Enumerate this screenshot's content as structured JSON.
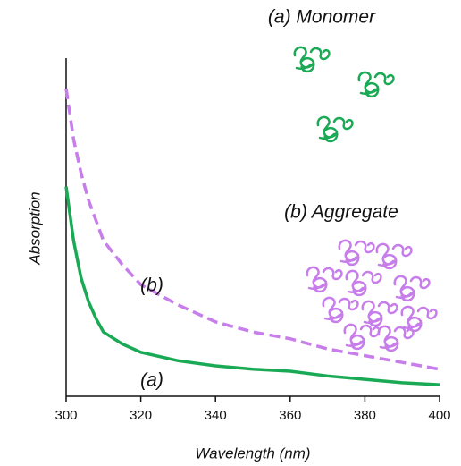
{
  "chart_data": {
    "type": "line",
    "x_label": "Wavelength  (nm)",
    "y_label": "Absorption",
    "annotations": [
      "(a) Monomer",
      "(b) Aggregate"
    ],
    "x": [
      300,
      302,
      304,
      306,
      308,
      310,
      315,
      320,
      330,
      340,
      350,
      360,
      370,
      380,
      390,
      400
    ],
    "series": [
      {
        "name": "(a)",
        "color": "#1aaa55",
        "line_style": "solid",
        "values": [
          0.62,
          0.46,
          0.35,
          0.28,
          0.23,
          0.19,
          0.155,
          0.13,
          0.105,
          0.09,
          0.08,
          0.074,
          0.06,
          0.05,
          0.04,
          0.034
        ]
      },
      {
        "name": "(b)",
        "color": "#c77dea",
        "line_style": "dashed",
        "values": [
          0.91,
          0.76,
          0.66,
          0.58,
          0.52,
          0.46,
          0.39,
          0.33,
          0.27,
          0.22,
          0.19,
          0.17,
          0.14,
          0.12,
          0.1,
          0.08
        ]
      }
    ],
    "xlim": [
      300,
      400
    ],
    "xticks": [
      300,
      320,
      340,
      360,
      380,
      400
    ],
    "ylim": [
      0,
      1
    ]
  }
}
